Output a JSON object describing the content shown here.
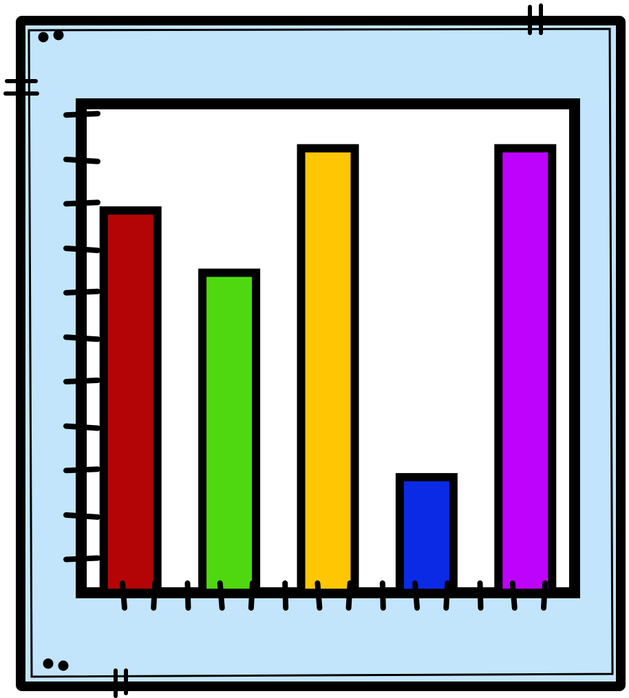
{
  "chart_data": {
    "type": "bar",
    "title": "",
    "xlabel": "",
    "ylabel": "",
    "ylim": [
      0,
      11
    ],
    "grid": false,
    "legend": "none",
    "categories": [
      "",
      "",
      "",
      "",
      ""
    ],
    "values": [
      8.6,
      7.2,
      10,
      2.6,
      10
    ],
    "colors": [
      "#b30505",
      "#4fd80f",
      "#fec603",
      "#0a2ae6",
      "#be03fd"
    ]
  },
  "style": {
    "frame_fill": "#c2e5fb",
    "plot_fill": "#ffffff",
    "ink": "#000000"
  }
}
